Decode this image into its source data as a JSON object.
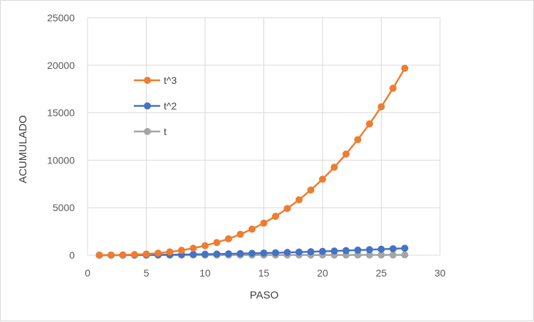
{
  "chart_data": {
    "type": "scatter",
    "title": "",
    "xlabel": "PASO",
    "ylabel": "ACUMULADO",
    "xlim": [
      0,
      30
    ],
    "ylim": [
      0,
      25000
    ],
    "x_ticks": [
      "0",
      "5",
      "10",
      "15",
      "20",
      "25",
      "30"
    ],
    "y_ticks": [
      "0",
      "5000",
      "10000",
      "15000",
      "20000",
      "25000"
    ],
    "grid": true,
    "legend_position": "upper-left inside plot",
    "series": [
      {
        "name": "t^3",
        "color": "#ed7d31",
        "x": [
          1,
          2,
          3,
          4,
          5,
          6,
          7,
          8,
          9,
          10,
          11,
          12,
          13,
          14,
          15,
          16,
          17,
          18,
          19,
          20,
          21,
          22,
          23,
          24,
          25,
          26,
          27
        ],
        "y": [
          1,
          8,
          27,
          64,
          125,
          216,
          343,
          512,
          729,
          1000,
          1331,
          1728,
          2197,
          2744,
          3375,
          4096,
          4913,
          5832,
          6859,
          8000,
          9261,
          10648,
          12167,
          13824,
          15625,
          17576,
          19683
        ]
      },
      {
        "name": "t^2",
        "color": "#4472c4",
        "x": [
          1,
          2,
          3,
          4,
          5,
          6,
          7,
          8,
          9,
          10,
          11,
          12,
          13,
          14,
          15,
          16,
          17,
          18,
          19,
          20,
          21,
          22,
          23,
          24,
          25,
          26,
          27
        ],
        "y": [
          1,
          4,
          9,
          16,
          25,
          36,
          49,
          64,
          81,
          100,
          121,
          144,
          169,
          196,
          225,
          256,
          289,
          324,
          361,
          400,
          441,
          484,
          529,
          576,
          625,
          676,
          729
        ]
      },
      {
        "name": "t",
        "color": "#a5a5a5",
        "x": [
          1,
          2,
          3,
          4,
          5,
          6,
          7,
          8,
          9,
          10,
          11,
          12,
          13,
          14,
          15,
          16,
          17,
          18,
          19,
          20,
          21,
          22,
          23,
          24,
          25,
          26,
          27
        ],
        "y": [
          1,
          2,
          3,
          4,
          5,
          6,
          7,
          8,
          9,
          10,
          11,
          12,
          13,
          14,
          15,
          16,
          17,
          18,
          19,
          20,
          21,
          22,
          23,
          24,
          25,
          26,
          27
        ]
      }
    ]
  }
}
